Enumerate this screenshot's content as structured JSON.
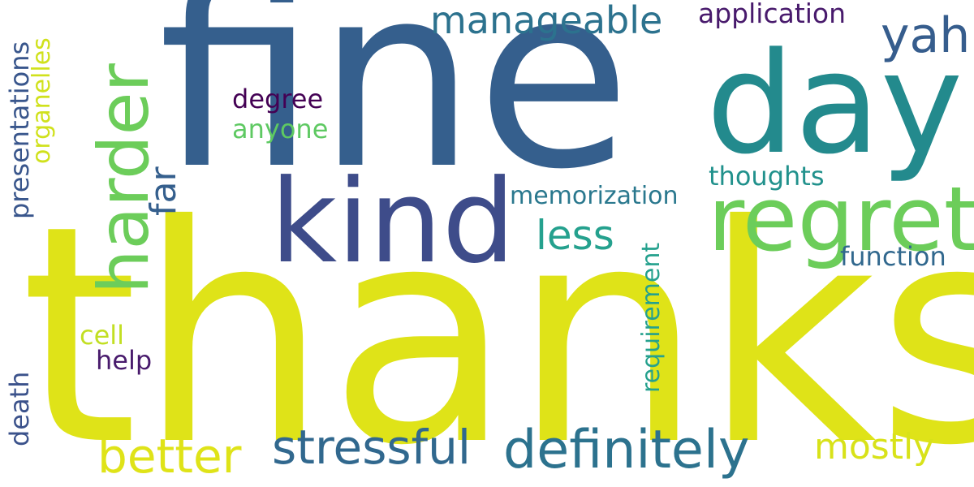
{
  "words": [
    {
      "text": "thanks",
      "color": "#dfe318",
      "vertical": false
    },
    {
      "text": "fine",
      "color": "#355f8d",
      "vertical": false
    },
    {
      "text": "day",
      "color": "#238a8d",
      "vertical": false
    },
    {
      "text": "kind",
      "color": "#3e4c8a",
      "vertical": false
    },
    {
      "text": "harder",
      "color": "#6ccd5a",
      "vertical": true
    },
    {
      "text": "regret",
      "color": "#6ccd5a",
      "vertical": false
    },
    {
      "text": "manageable",
      "color": "#2c728e",
      "vertical": false
    },
    {
      "text": "yah",
      "color": "#365d8d",
      "vertical": false
    },
    {
      "text": "application",
      "color": "#481a6c",
      "vertical": false
    },
    {
      "text": "definitely",
      "color": "#2c728e",
      "vertical": false
    },
    {
      "text": "stressful",
      "color": "#31688e",
      "vertical": false
    },
    {
      "text": "better",
      "color": "#dfe318",
      "vertical": false
    },
    {
      "text": "mostly",
      "color": "#d8e219",
      "vertical": false
    },
    {
      "text": "less",
      "color": "#25a18e",
      "vertical": false
    },
    {
      "text": "far",
      "color": "#355f8d",
      "vertical": true
    },
    {
      "text": "degree",
      "color": "#440154",
      "vertical": false
    },
    {
      "text": "anyone",
      "color": "#5ec962",
      "vertical": false
    },
    {
      "text": "thoughts",
      "color": "#21918c",
      "vertical": false
    },
    {
      "text": "memorization",
      "color": "#2a788e",
      "vertical": false
    },
    {
      "text": "function",
      "color": "#31688e",
      "vertical": false
    },
    {
      "text": "requirement",
      "color": "#25a18e",
      "vertical": true
    },
    {
      "text": "presentations",
      "color": "#39568c",
      "vertical": true
    },
    {
      "text": "organelles",
      "color": "#d0e11c",
      "vertical": true
    },
    {
      "text": "cell",
      "color": "#c2df23",
      "vertical": false
    },
    {
      "text": "help",
      "color": "#481a6c",
      "vertical": false
    },
    {
      "text": "death",
      "color": "#3b528b",
      "vertical": true
    }
  ]
}
